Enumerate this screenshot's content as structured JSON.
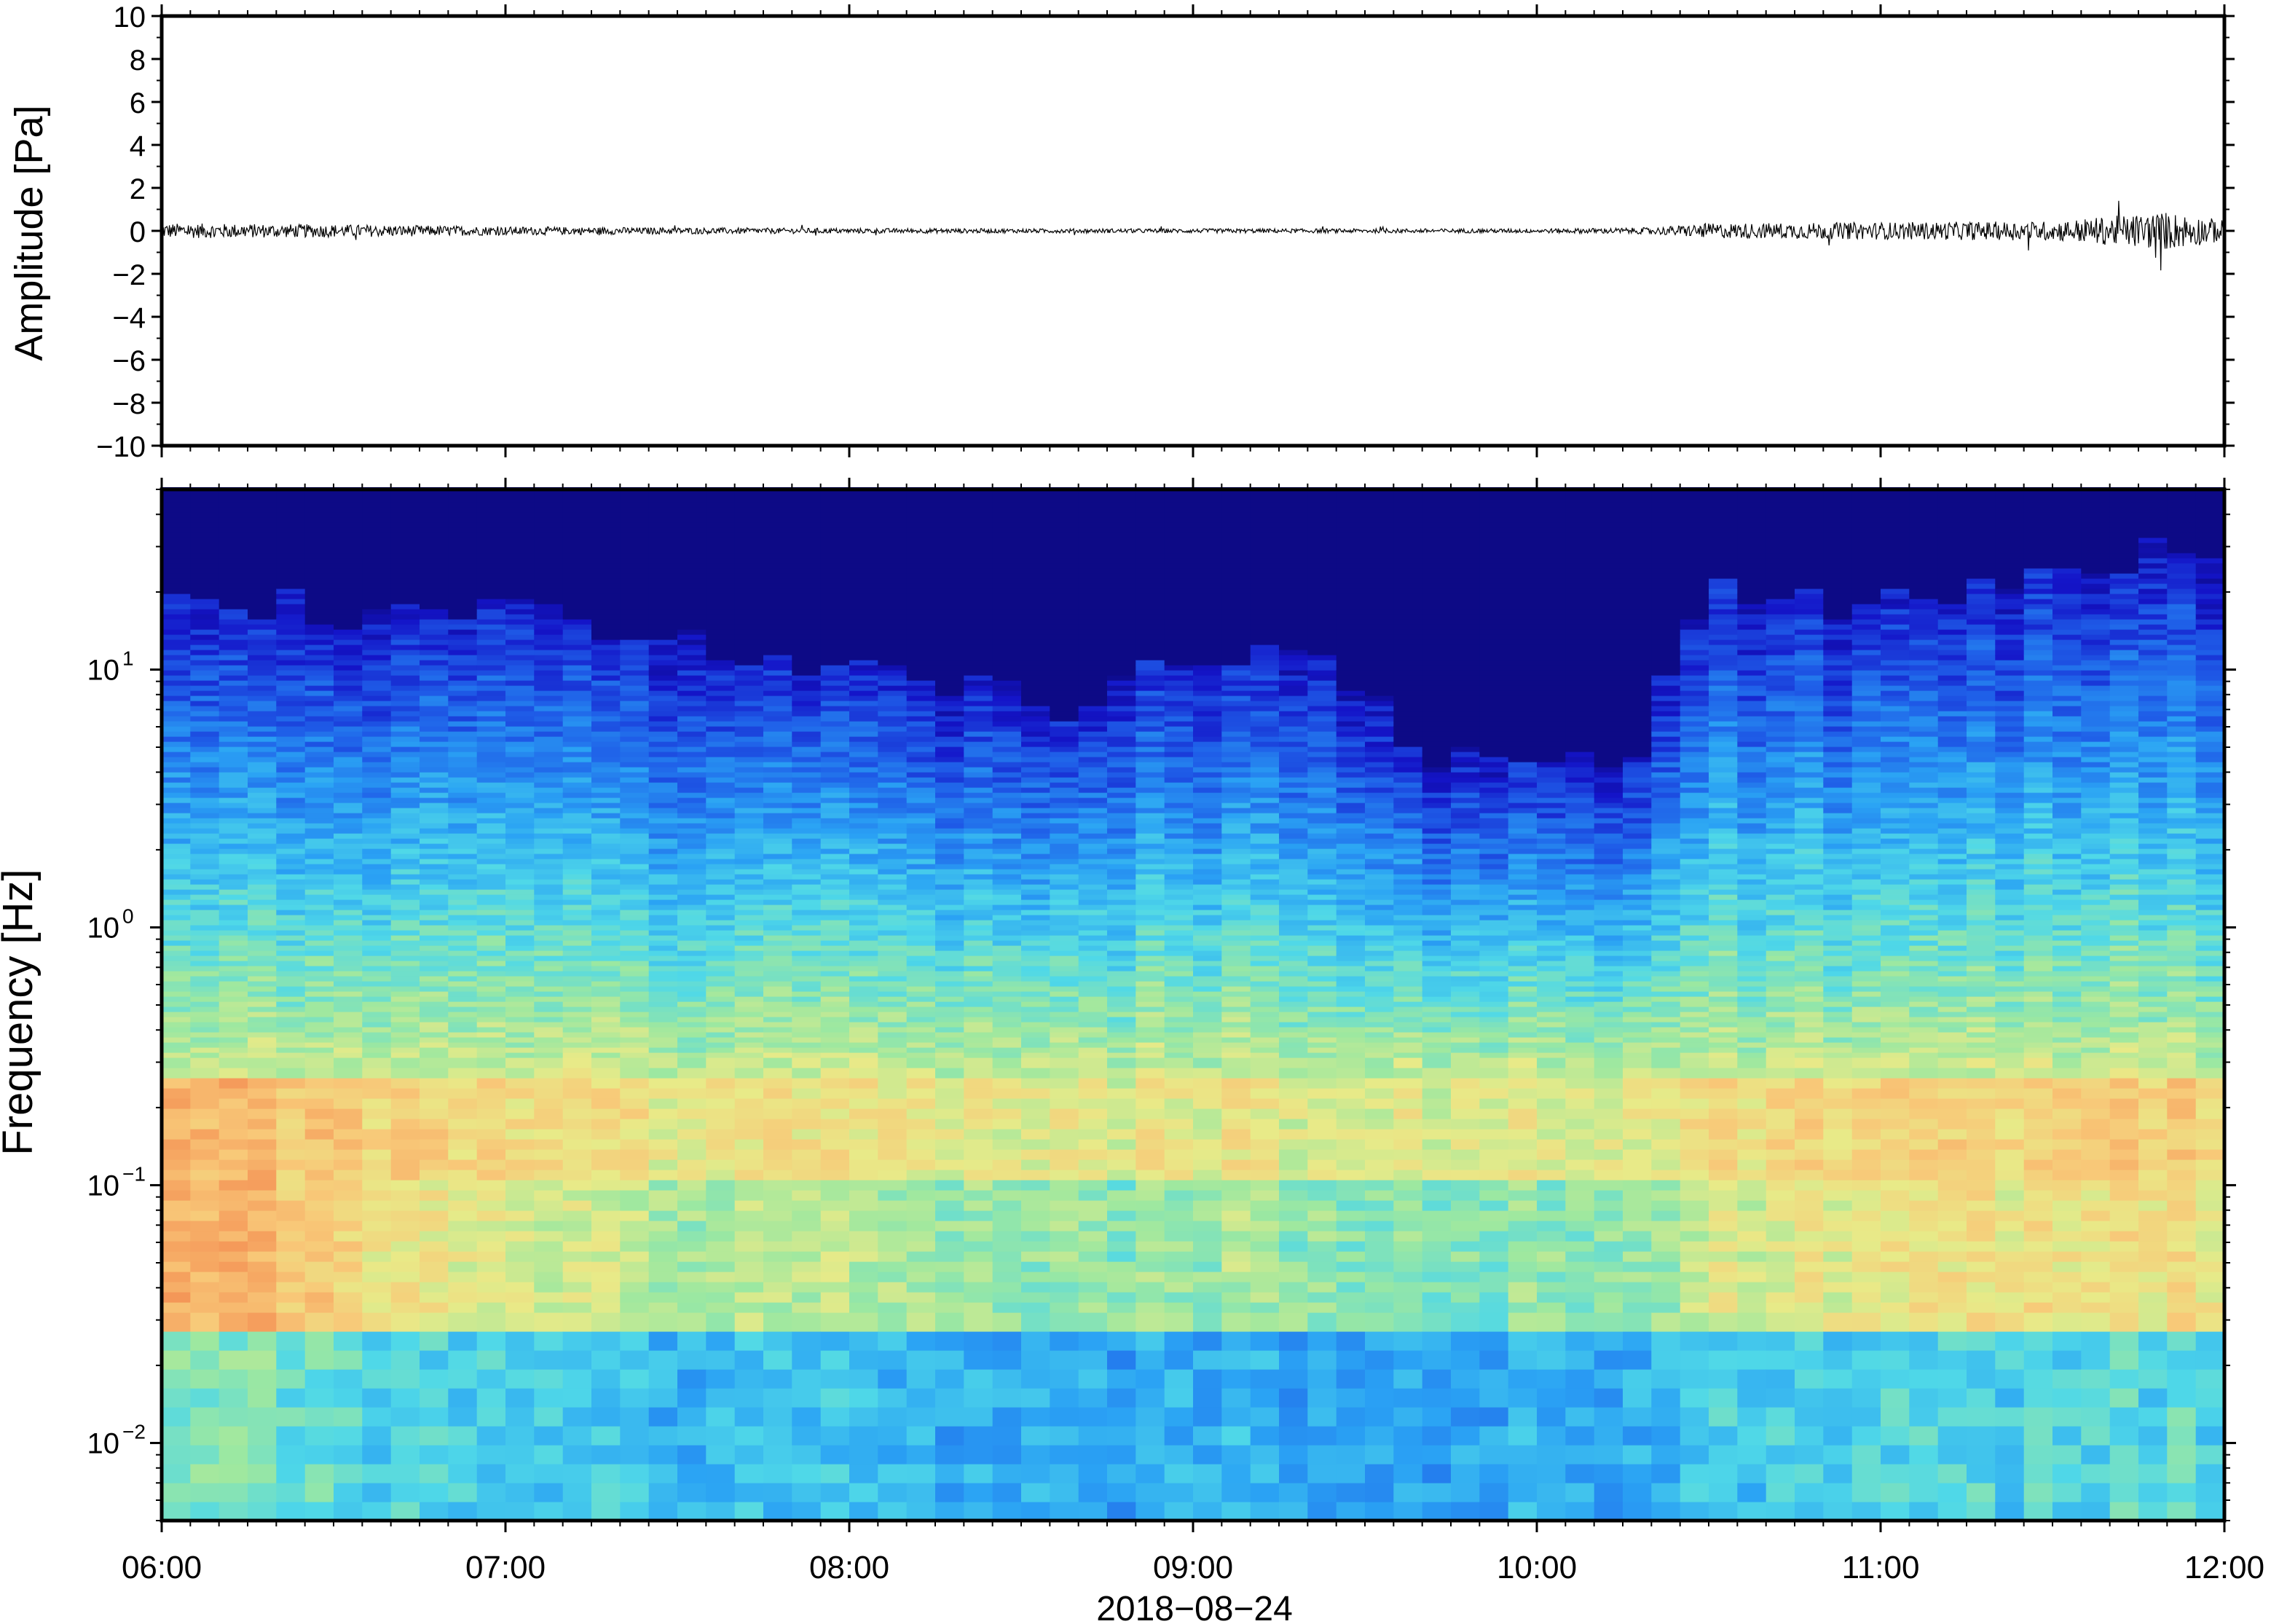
{
  "chart_data": [
    {
      "type": "line",
      "ylabel": "Amplitude [Pa]",
      "ylim": [
        -10,
        10
      ],
      "yticks": [
        {
          "v": 10,
          "label": "10"
        },
        {
          "v": 8,
          "label": "8"
        },
        {
          "v": 6,
          "label": "6"
        },
        {
          "v": 4,
          "label": "4"
        },
        {
          "v": 2,
          "label": "2"
        },
        {
          "v": 0,
          "label": "0"
        },
        {
          "v": -2,
          "label": "−2"
        },
        {
          "v": -4,
          "label": "−4"
        },
        {
          "v": -6,
          "label": "−6"
        },
        {
          "v": -8,
          "label": "−8"
        },
        {
          "v": -10,
          "label": "−10"
        }
      ],
      "x_range": [
        "06:00",
        "12:00"
      ],
      "envelope": {
        "times": [
          "06:00",
          "06:30",
          "07:00",
          "07:30",
          "08:00",
          "08:30",
          "09:00",
          "09:30",
          "10:00",
          "10:20",
          "10:30",
          "11:00",
          "11:30",
          "11:50",
          "12:00"
        ],
        "peak_abs": [
          0.35,
          0.3,
          0.2,
          0.15,
          0.12,
          0.1,
          0.1,
          0.1,
          0.1,
          0.15,
          0.35,
          0.4,
          0.45,
          0.9,
          0.5
        ]
      },
      "grid": false
    },
    {
      "type": "heatmap",
      "ylabel": "Frequency [Hz]",
      "xlabel": "2018−08−24",
      "y_scale": "log",
      "ylim": [
        0.005,
        50
      ],
      "yticks": [
        {
          "v": 10,
          "base": "10",
          "exp": "1"
        },
        {
          "v": 1,
          "base": "10",
          "exp": "0"
        },
        {
          "v": 0.1,
          "base": "10",
          "exp": "−1"
        },
        {
          "v": 0.01,
          "base": "10",
          "exp": "−2"
        }
      ],
      "xticks": [
        "06:00",
        "07:00",
        "08:00",
        "09:00",
        "10:00",
        "11:00",
        "12:00"
      ],
      "colormap": [
        "#0b0877",
        "#1414c8",
        "#1f5ee8",
        "#2aa2f4",
        "#4fd8e8",
        "#9de8a0",
        "#e8ea88",
        "#f8c878",
        "#f59a5a",
        "#f08048"
      ],
      "energy_profile": {
        "description_free": true,
        "times": [
          "06:00",
          "06:20",
          "06:40",
          "07:00",
          "07:20",
          "07:40",
          "08:00",
          "08:20",
          "08:40",
          "09:00",
          "09:20",
          "09:40",
          "10:00",
          "10:20",
          "10:30",
          "10:50",
          "11:10",
          "11:30",
          "11:50",
          "12:00"
        ],
        "cutoff_hz": [
          18,
          18,
          15,
          18,
          14,
          11,
          10,
          9,
          7,
          11,
          11,
          5,
          4,
          5,
          20,
          18,
          18,
          22,
          28,
          25
        ],
        "low_freq_level": [
          0.95,
          0.9,
          0.8,
          0.75,
          0.72,
          0.7,
          0.7,
          0.68,
          0.66,
          0.68,
          0.68,
          0.66,
          0.66,
          0.68,
          0.75,
          0.78,
          0.8,
          0.8,
          0.82,
          0.82
        ]
      },
      "grid": false
    }
  ]
}
